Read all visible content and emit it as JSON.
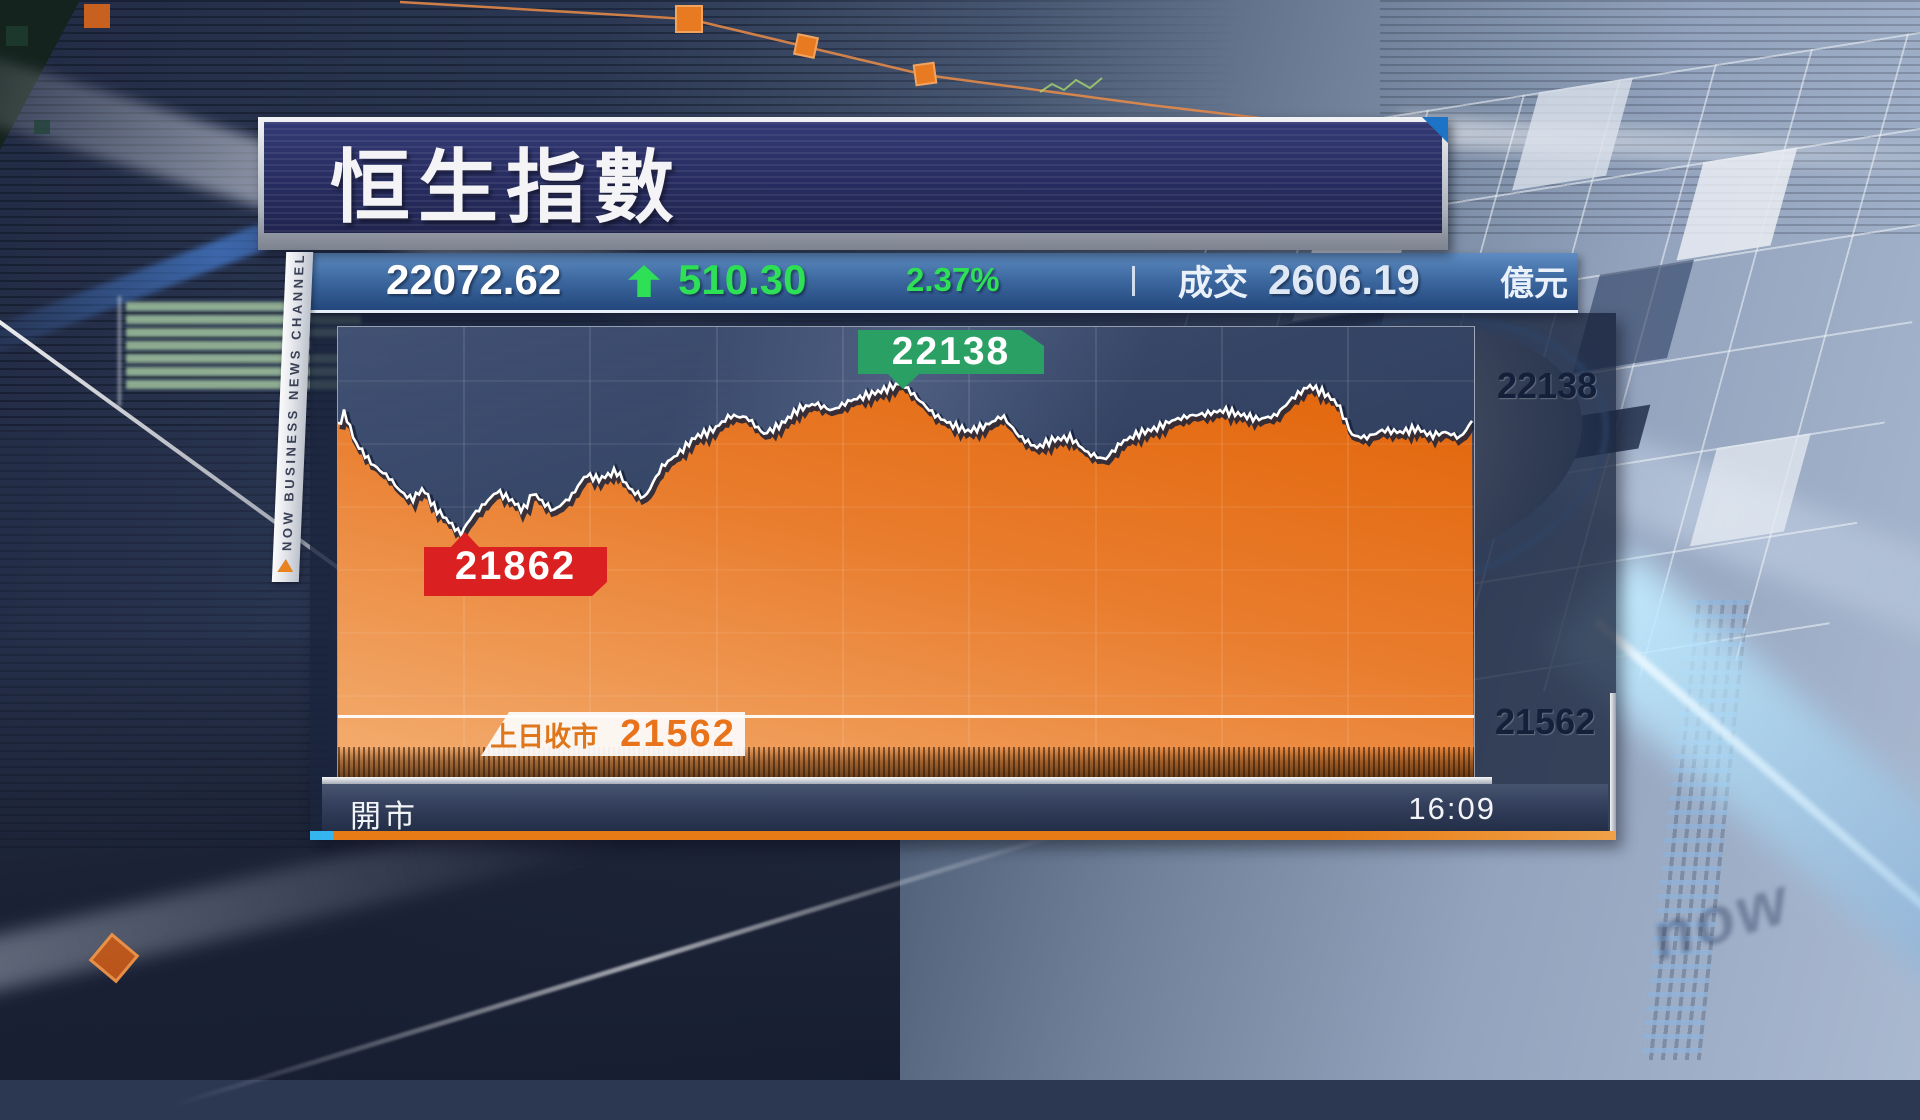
{
  "brand": {
    "channel_vertical": "NOW BUSINESS NEWS CHANNEL",
    "watermark": "now"
  },
  "title": {
    "text": "恒生指數"
  },
  "quote_bar": {
    "index_value": "22072.62",
    "direction": "up",
    "change_value": "510.30",
    "change_percent": "2.37%",
    "turnover_label": "成交",
    "turnover_value": "2606.19",
    "turnover_unit": "億元",
    "up_color": "#2de055"
  },
  "chart": {
    "high_label": "22138",
    "low_label": "21862",
    "prev_close_label": "上日收市",
    "prev_close_value": "21562",
    "right_tick_high": "22138",
    "right_tick_low": "21562"
  },
  "footer": {
    "open_label": "開市",
    "time": "16:09"
  },
  "chart_data": {
    "type": "area",
    "title": "恒生指數 intraday",
    "x_axis": {
      "start_label": "開市",
      "end_label": "16:09"
    },
    "right_ticks": [
      22138,
      21562
    ],
    "high": 22138,
    "low": 21862,
    "prev_close": 21562,
    "last": 22072.62,
    "change": 510.3,
    "change_pct": 2.37,
    "turnover": "2606.19億元",
    "fill_color_top": "#e3680e",
    "fill_color_bottom": "#f2a96a",
    "line_color": "#ffffff",
    "points": [
      [
        0.0,
        22060
      ],
      [
        0.006,
        22085
      ],
      [
        0.015,
        22030
      ],
      [
        0.03,
        21990
      ],
      [
        0.045,
        21965
      ],
      [
        0.055,
        21940
      ],
      [
        0.065,
        21925
      ],
      [
        0.075,
        21945
      ],
      [
        0.085,
        21910
      ],
      [
        0.095,
        21890
      ],
      [
        0.108,
        21862
      ],
      [
        0.118,
        21895
      ],
      [
        0.128,
        21915
      ],
      [
        0.14,
        21940
      ],
      [
        0.152,
        21925
      ],
      [
        0.163,
        21905
      ],
      [
        0.172,
        21938
      ],
      [
        0.18,
        21920
      ],
      [
        0.19,
        21905
      ],
      [
        0.205,
        21930
      ],
      [
        0.218,
        21970
      ],
      [
        0.23,
        21962
      ],
      [
        0.245,
        21977
      ],
      [
        0.258,
        21942
      ],
      [
        0.27,
        21928
      ],
      [
        0.285,
        21985
      ],
      [
        0.3,
        22010
      ],
      [
        0.315,
        22040
      ],
      [
        0.33,
        22052
      ],
      [
        0.345,
        22078
      ],
      [
        0.36,
        22075
      ],
      [
        0.375,
        22045
      ],
      [
        0.39,
        22062
      ],
      [
        0.405,
        22090
      ],
      [
        0.42,
        22100
      ],
      [
        0.435,
        22088
      ],
      [
        0.45,
        22105
      ],
      [
        0.465,
        22115
      ],
      [
        0.48,
        22125
      ],
      [
        0.496,
        22138
      ],
      [
        0.51,
        22110
      ],
      [
        0.525,
        22080
      ],
      [
        0.54,
        22062
      ],
      [
        0.555,
        22050
      ],
      [
        0.57,
        22060
      ],
      [
        0.585,
        22078
      ],
      [
        0.6,
        22040
      ],
      [
        0.615,
        22020
      ],
      [
        0.63,
        22035
      ],
      [
        0.645,
        22038
      ],
      [
        0.66,
        22010
      ],
      [
        0.675,
        21998
      ],
      [
        0.69,
        22030
      ],
      [
        0.705,
        22046
      ],
      [
        0.72,
        22055
      ],
      [
        0.735,
        22070
      ],
      [
        0.75,
        22078
      ],
      [
        0.765,
        22082
      ],
      [
        0.78,
        22088
      ],
      [
        0.795,
        22080
      ],
      [
        0.81,
        22072
      ],
      [
        0.825,
        22078
      ],
      [
        0.84,
        22110
      ],
      [
        0.855,
        22133
      ],
      [
        0.868,
        22120
      ],
      [
        0.88,
        22100
      ],
      [
        0.893,
        22042
      ],
      [
        0.905,
        22038
      ],
      [
        0.92,
        22052
      ],
      [
        0.935,
        22048
      ],
      [
        0.95,
        22055
      ],
      [
        0.962,
        22042
      ],
      [
        0.975,
        22048
      ],
      [
        0.988,
        22038
      ],
      [
        1.0,
        22073
      ]
    ]
  }
}
